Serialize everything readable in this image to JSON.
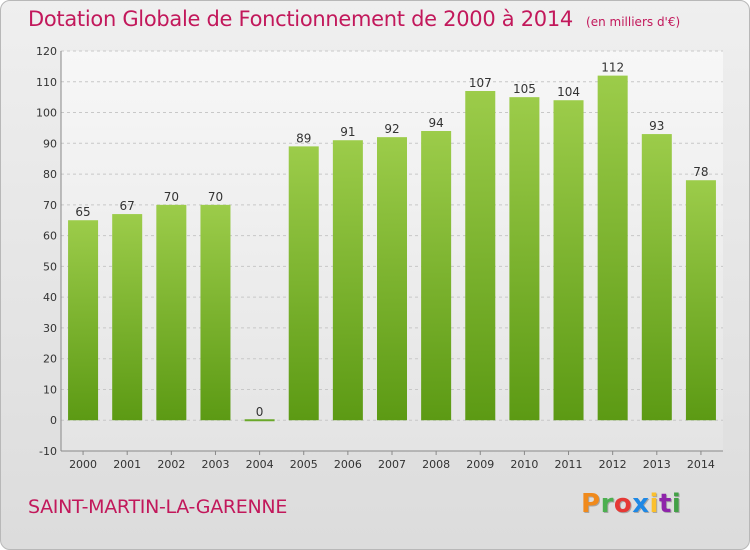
{
  "header": {
    "title": "Dotation Globale de Fonctionnement de 2000 à 2014",
    "subtitle": "(en milliers d'€)"
  },
  "footer": {
    "commune": "SAINT-MARTIN-LA-GARENNE",
    "logo_text": "Proxiti"
  },
  "colors": {
    "title": "#c2185b",
    "bar_top": "#9ccc4a",
    "bar_bottom": "#5c9a14",
    "logo": [
      "#f08a1c",
      "#4caf50",
      "#e53935",
      "#1e88e5",
      "#fbc02d",
      "#8e24aa",
      "#43a047"
    ]
  },
  "chart_data": {
    "type": "bar",
    "categories": [
      "2000",
      "2001",
      "2002",
      "2003",
      "2004",
      "2005",
      "2006",
      "2007",
      "2008",
      "2009",
      "2010",
      "2011",
      "2012",
      "2013",
      "2014"
    ],
    "values": [
      65,
      67,
      70,
      70,
      0,
      89,
      91,
      92,
      94,
      107,
      105,
      104,
      112,
      93,
      78
    ],
    "data_labels": [
      "65",
      "67",
      "70",
      "70",
      "0",
      "89",
      "91",
      "92",
      "94",
      "107",
      "105",
      "104",
      "112",
      "93",
      "78"
    ],
    "title": "Dotation Globale de Fonctionnement de 2000 à 2014",
    "subtitle": "(en milliers d'€)",
    "xlabel": "",
    "ylabel": "",
    "ylim": [
      -10,
      120
    ],
    "yticks": [
      -10,
      0,
      10,
      20,
      30,
      40,
      50,
      60,
      70,
      80,
      90,
      100,
      110,
      120
    ],
    "grid": true,
    "legend": "none"
  }
}
